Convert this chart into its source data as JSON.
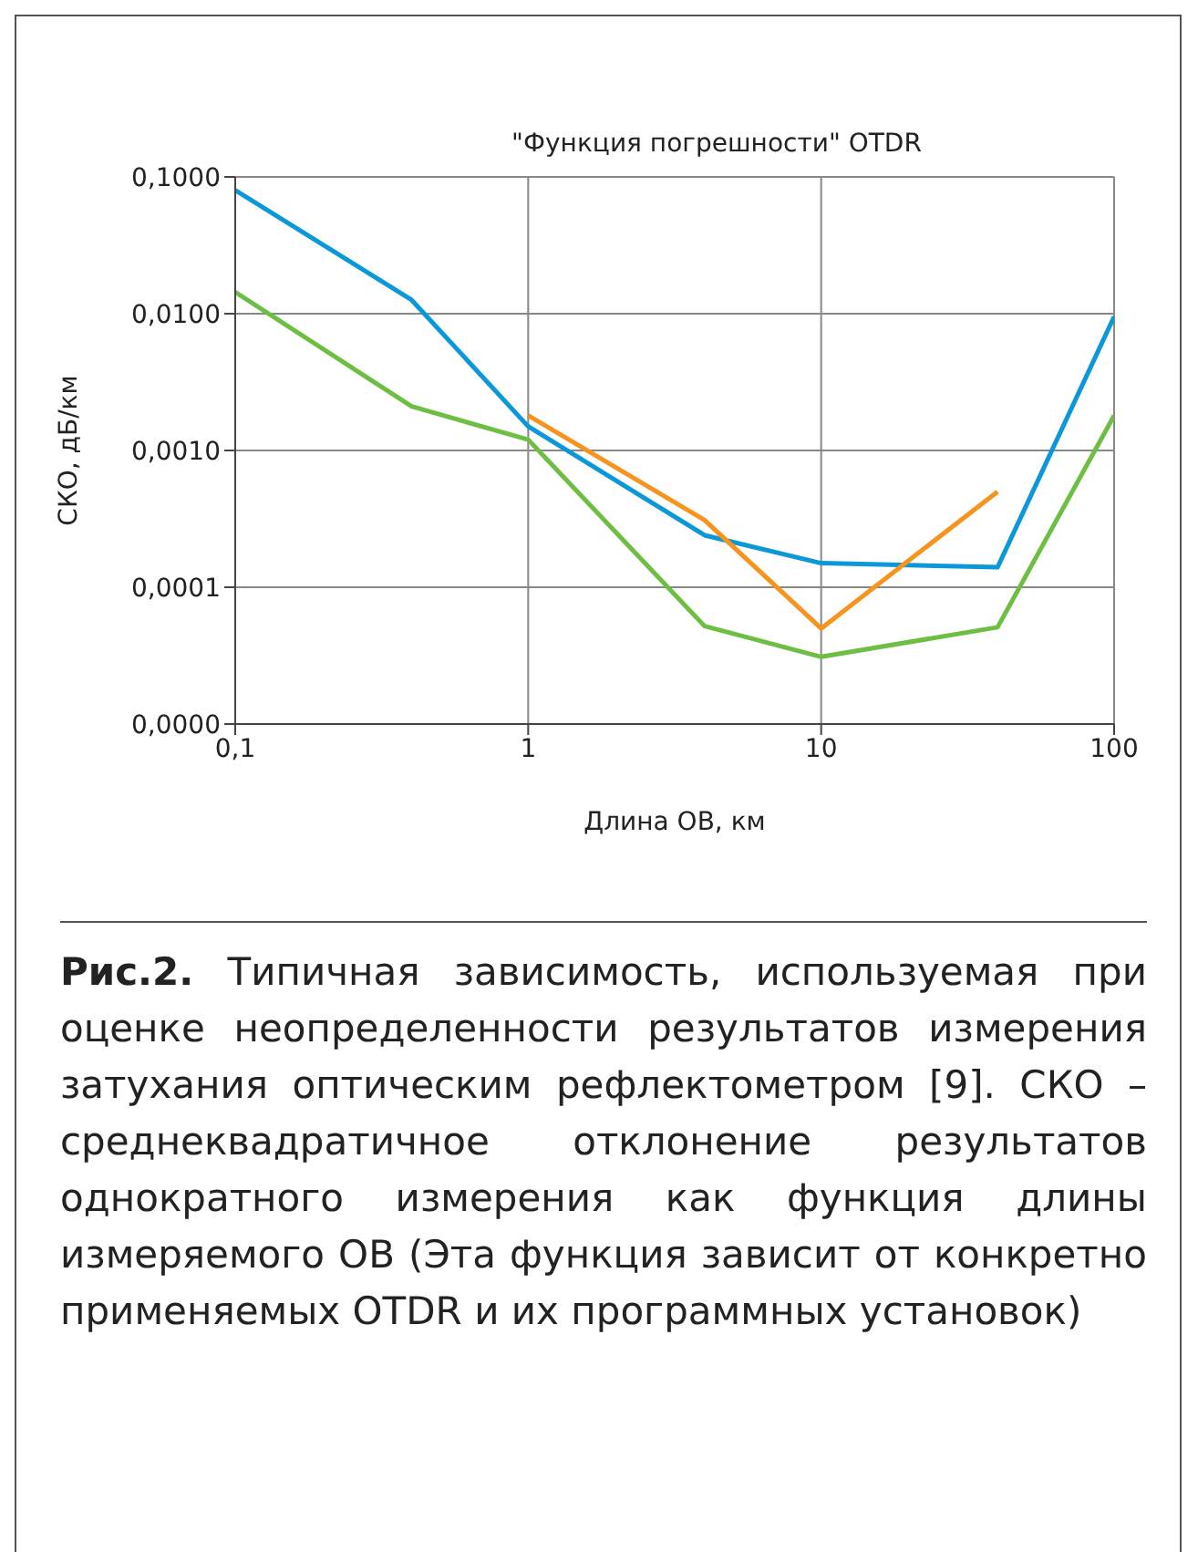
{
  "chart_data": {
    "type": "line",
    "title": "\"Функция погрешности\" OTDR",
    "xlabel": "Длина ОВ, км",
    "ylabel": "СКО, дБ/км",
    "log": "xy",
    "grid": true,
    "legend": false,
    "marker": "none",
    "line_style": "solid",
    "xlim": [
      0.1,
      100
    ],
    "xticks": [
      {
        "value": 0.1,
        "label": "0,1"
      },
      1,
      10,
      100
    ],
    "ylim": [
      1e-05,
      0.1
    ],
    "yticks": [
      {
        "value": 1e-05,
        "label": "0,0000"
      },
      {
        "value": 0.0001,
        "label": "0,0001"
      },
      {
        "value": 0.001,
        "label": "0,0010"
      },
      {
        "value": 0.01,
        "label": "0,0100"
      },
      {
        "value": 0.1,
        "label": "0,1000"
      }
    ],
    "series": [
      {
        "color": "#0b98d9",
        "x": [
          0.1,
          0.4,
          1,
          4,
          10,
          40,
          100
        ],
        "values": [
          0.08,
          0.0126,
          0.0015,
          0.00024,
          0.00015,
          0.00014,
          0.0095
        ]
      },
      {
        "color": "#f7941d",
        "x": [
          1,
          4,
          10,
          40
        ],
        "values": [
          0.0018,
          0.00031,
          5e-05,
          0.0005
        ]
      },
      {
        "color": "#6fbe44",
        "x": [
          0.1,
          0.4,
          1,
          4,
          10,
          40,
          100
        ],
        "values": [
          0.0144,
          0.0021,
          0.0012,
          5.2e-05,
          3.1e-05,
          5.1e-05,
          0.0018
        ]
      }
    ],
    "annotations": [
      "Рис.2. Типичная зависимость, используемая при оценке неопределенности результатов измерения затухания оптическим рефлектометром [9]. СКО – среднеквадратичное отклонение результатов однократного измерения как функция длины измеряемого ОВ (Эта функция зависит от конкретно применяемых OTDR и их программных установок)"
    ]
  }
}
